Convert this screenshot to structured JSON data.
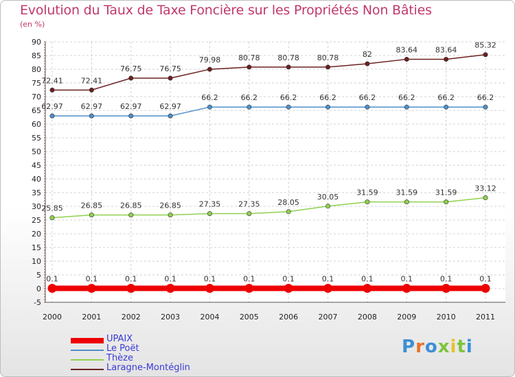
{
  "chart_data": {
    "type": "line",
    "title": "Evolution du Taux de Taxe Foncière sur les Propriétés Non Bâties",
    "subtitle": "(en %)",
    "x": [
      "2000",
      "2001",
      "2002",
      "2003",
      "2004",
      "2005",
      "2006",
      "2007",
      "2008",
      "2009",
      "2010",
      "2011"
    ],
    "ylim": [
      -5,
      90
    ],
    "yticks": [
      -5,
      0,
      5,
      10,
      15,
      20,
      25,
      30,
      35,
      40,
      45,
      50,
      55,
      60,
      65,
      70,
      75,
      80,
      85,
      90
    ],
    "grid": true,
    "legend_position": "bottom-left",
    "series": [
      {
        "name": "UPAIX",
        "color": "#ee0000",
        "values": [
          0.1,
          0.1,
          0.1,
          0.1,
          0.1,
          0.1,
          0.1,
          0.1,
          0.1,
          0.1,
          0.1,
          0.1
        ],
        "labels": [
          "0.1",
          "0.1",
          "0.1",
          "0.1",
          "0.1",
          "0.1",
          "0.1",
          "0.1",
          "0.1",
          "0.1",
          "0.1",
          "0.1"
        ]
      },
      {
        "name": "Le Poët",
        "color": "#4f8fc9",
        "values": [
          62.97,
          62.97,
          62.97,
          62.97,
          66.2,
          66.2,
          66.2,
          66.2,
          66.2,
          66.2,
          66.2,
          66.2
        ],
        "labels": [
          "62.97",
          "62.97",
          "62.97",
          "62.97",
          "66.2",
          "66.2",
          "66.2",
          "66.2",
          "66.2",
          "66.2",
          "66.2",
          "66.2"
        ]
      },
      {
        "name": "Thèze",
        "color": "#8fd14f",
        "values": [
          25.85,
          26.85,
          26.85,
          26.85,
          27.35,
          27.35,
          28.05,
          30.05,
          31.59,
          31.59,
          31.59,
          33.12
        ],
        "labels": [
          "25.85",
          "26.85",
          "26.85",
          "26.85",
          "27.35",
          "27.35",
          "28.05",
          "30.05",
          "31.59",
          "31.59",
          "31.59",
          "33.12"
        ]
      },
      {
        "name": "Laragne-Montéglin",
        "color": "#6b2020",
        "values": [
          72.41,
          72.41,
          76.75,
          76.75,
          79.98,
          80.78,
          80.78,
          80.78,
          82,
          83.64,
          83.64,
          85.32
        ],
        "labels": [
          "72.41",
          "72.41",
          "76.75",
          "76.75",
          "79.98",
          "80.78",
          "80.78",
          "80.78",
          "82",
          "83.64",
          "83.64",
          "85.32"
        ]
      }
    ]
  },
  "logo": {
    "text": "Proxiti"
  }
}
